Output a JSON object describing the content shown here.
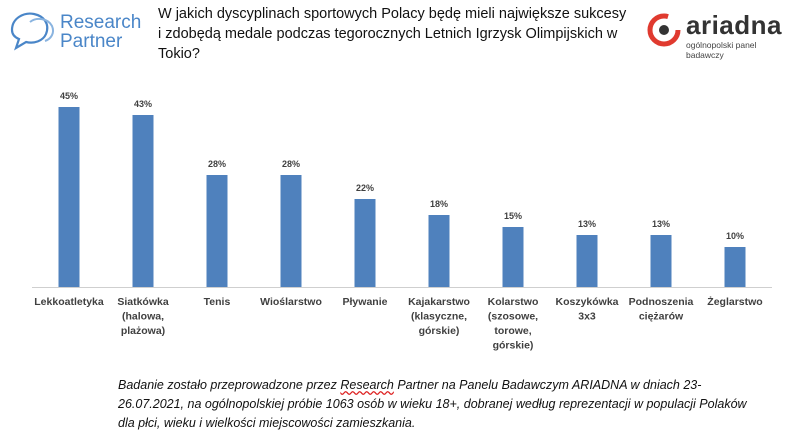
{
  "header": {
    "logo_left_line1": "Research",
    "logo_left_line2": "Partner",
    "question": "W jakich dyscyplinach sportowych Polacy będę mieli największe sukcesy i zdobędą medale podczas tegorocznych Letnich Igrzysk Olimpijskich w Tokio?",
    "logo_right_brand": "ariadna",
    "logo_right_sub": "ogólnopolski panel badawczy"
  },
  "chart_data": {
    "type": "bar",
    "categories": [
      [
        "Lekkoatletyka"
      ],
      [
        "Siatkówka",
        "(halowa,",
        "plażowa)"
      ],
      [
        "Tenis"
      ],
      [
        "Wioślarstwo"
      ],
      [
        "Pływanie"
      ],
      [
        "Kajakarstwo",
        "(klasyczne,",
        "górskie)"
      ],
      [
        "Kolarstwo",
        "(szosowe,",
        "torowe,",
        "górskie)"
      ],
      [
        "Koszykówka",
        "3x3"
      ],
      [
        "Podnoszenia",
        "ciężarów"
      ],
      [
        "Żeglarstwo"
      ]
    ],
    "values": [
      45,
      43,
      28,
      28,
      22,
      18,
      15,
      13,
      13,
      10
    ],
    "value_labels": [
      "45%",
      "43%",
      "28%",
      "28%",
      "22%",
      "18%",
      "15%",
      "13%",
      "13%",
      "10%"
    ],
    "ylim": [
      0,
      50
    ],
    "bar_color": "#4f81bd",
    "grid": false,
    "title": "",
    "xlabel": "",
    "ylabel": ""
  },
  "footnote": {
    "part1": "Badanie zostało przeprowadzone przez ",
    "part2": "Research",
    "part3": " Partner na Panelu Badawczym ARIADNA w dniach 23-26.07.2021, na ogólnopolskiej próbie 1063 osób w wieku 18+, dobranej według reprezentacji w populacji Polaków dla płci, wieku i wielkości miejscowości zamieszkania."
  },
  "colors": {
    "logo_blue": "#4a86c8",
    "brand_red": "#e03a2f"
  }
}
